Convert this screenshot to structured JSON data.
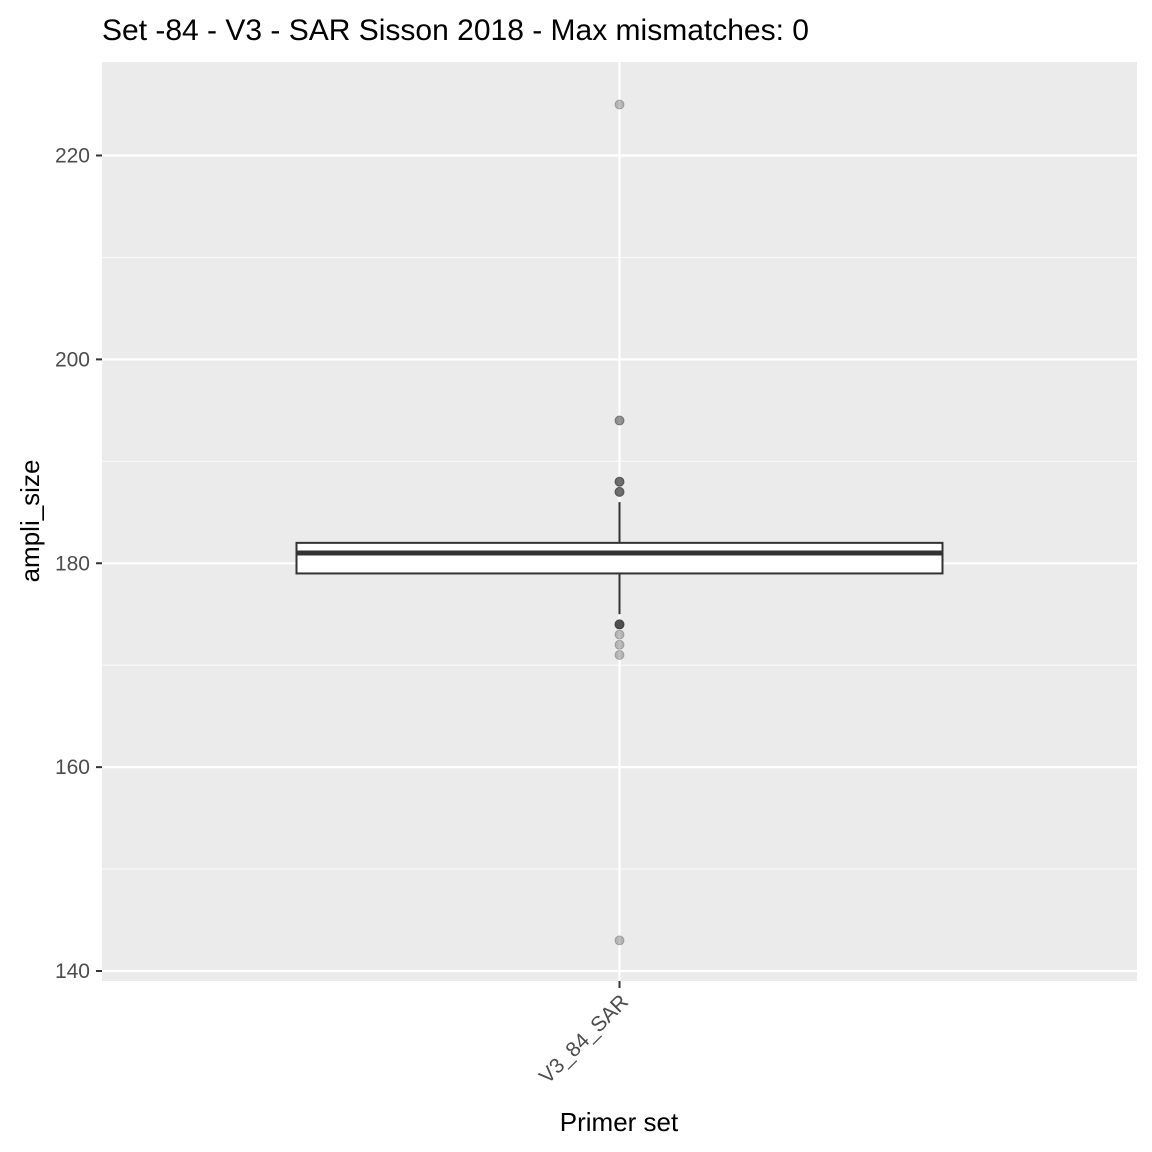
{
  "chart_data": {
    "type": "box",
    "title": "Set -84 - V3 - SAR Sisson 2018 - Max mismatches: 0",
    "xlabel": "Primer set",
    "ylabel": "ampli_size",
    "categories": [
      "V3_84_SAR"
    ],
    "ylim": [
      139,
      229
    ],
    "y_ticks": [
      140,
      160,
      180,
      200,
      220
    ],
    "grid": true,
    "box": {
      "category": "V3_84_SAR",
      "lower_whisker": 175,
      "q1": 179,
      "median": 181,
      "q3": 182,
      "upper_whisker": 186
    },
    "outliers": [
      {
        "category": "V3_84_SAR",
        "value": 225,
        "opacity": 0.3
      },
      {
        "category": "V3_84_SAR",
        "value": 194,
        "opacity": 0.5
      },
      {
        "category": "V3_84_SAR",
        "value": 188,
        "opacity": 0.7
      },
      {
        "category": "V3_84_SAR",
        "value": 187,
        "opacity": 0.7
      },
      {
        "category": "V3_84_SAR",
        "value": 174,
        "opacity": 0.85
      },
      {
        "category": "V3_84_SAR",
        "value": 173,
        "opacity": 0.3
      },
      {
        "category": "V3_84_SAR",
        "value": 172,
        "opacity": 0.3
      },
      {
        "category": "V3_84_SAR",
        "value": 171,
        "opacity": 0.3
      },
      {
        "category": "V3_84_SAR",
        "value": 143,
        "opacity": 0.3
      }
    ],
    "colors": {
      "panel_background": "#ebebeb",
      "grid_major": "#ffffff",
      "grid_minor": "#f7f7f7",
      "box_fill": "#ffffff",
      "box_line": "#333333",
      "outlier": "#333333",
      "tick_label": "#4d4d4d",
      "axis_ticks": "#333333"
    }
  }
}
